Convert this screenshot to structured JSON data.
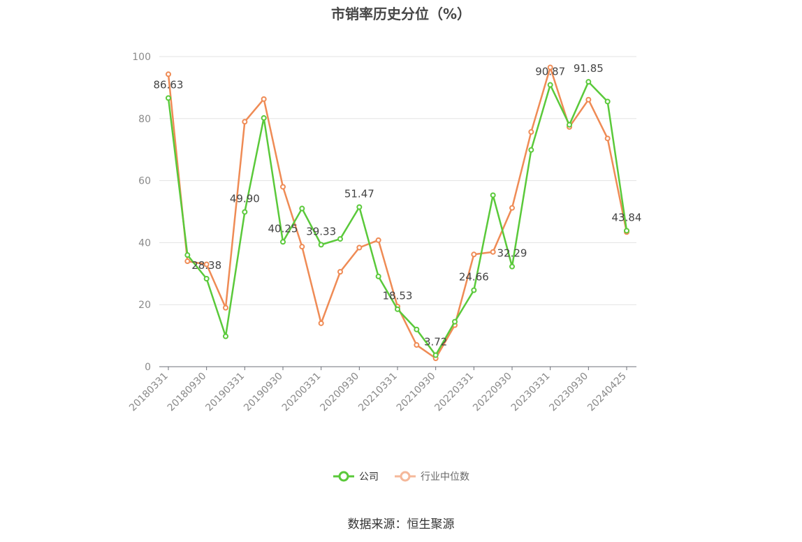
{
  "chart_data": {
    "type": "line",
    "title": "市销率历史分位（%）",
    "xlabel": "",
    "ylabel": "",
    "ylim": [
      0,
      100
    ],
    "yticks": [
      0,
      20,
      40,
      60,
      80,
      100
    ],
    "x": [
      "20180331",
      "20180630",
      "20180930",
      "20181231",
      "20190331",
      "20190630",
      "20190930",
      "20191231",
      "20200331",
      "20200630",
      "20200930",
      "20201231",
      "20210331",
      "20210630",
      "20210930",
      "20211231",
      "20220331",
      "20220630",
      "20220930",
      "20221231",
      "20230331",
      "20230630",
      "20230930",
      "20231231",
      "20240425"
    ],
    "xtick_labels": [
      "20180331",
      "20180930",
      "20190331",
      "20190930",
      "20200331",
      "20200930",
      "20210331",
      "20210930",
      "20220331",
      "20220930",
      "20230331",
      "20230930",
      "20240425"
    ],
    "series": [
      {
        "name": "公司",
        "color": "#5ac93a",
        "values": [
          86.63,
          36.0,
          28.38,
          9.8,
          49.9,
          80.2,
          40.25,
          51.0,
          39.33,
          41.2,
          51.47,
          29.1,
          18.53,
          12.0,
          3.72,
          14.5,
          24.66,
          55.3,
          32.29,
          69.9,
          90.87,
          78.0,
          91.85,
          85.5,
          43.84
        ],
        "labels": {
          "0": "86.63",
          "2": "28.38",
          "4": "49.90",
          "6": "40.25",
          "8": "39.33",
          "10": "51.47",
          "12": "18.53",
          "14": "3.72",
          "16": "24.66",
          "18": "32.29",
          "20": "90.87",
          "22": "91.85",
          "24": "43.84"
        }
      },
      {
        "name": "行业中位数",
        "color": "#ef8b55",
        "values": [
          94.3,
          34.0,
          33.0,
          19.0,
          79.0,
          86.3,
          58.0,
          38.7,
          14.0,
          30.6,
          38.4,
          40.8,
          19.4,
          7.0,
          2.7,
          13.4,
          36.2,
          37.0,
          51.2,
          75.7,
          96.5,
          77.3,
          86.1,
          73.6,
          43.4
        ]
      }
    ],
    "legend_position": "bottom",
    "grid": true
  },
  "legend": {
    "company": "公司",
    "industry": "行业中位数"
  },
  "source": "数据来源：恒生聚源"
}
